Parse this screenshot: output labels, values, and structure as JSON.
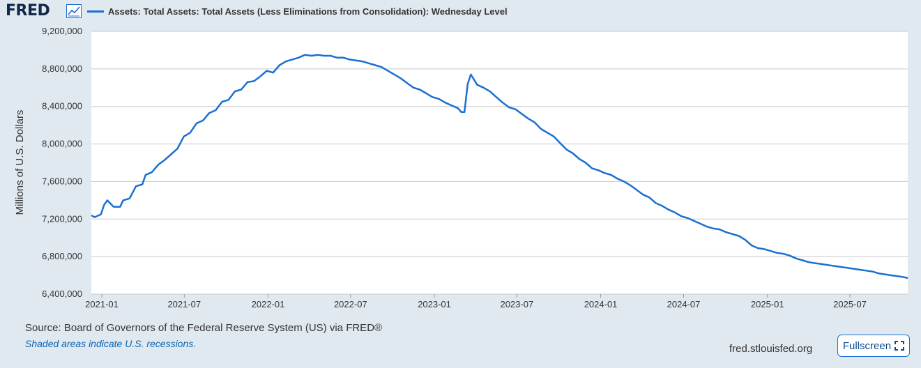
{
  "header": {
    "logo": "FRED",
    "legend_label": "Assets: Total Assets: Total Assets (Less Eliminations from Consolidation): Wednesday Level"
  },
  "footer": {
    "source": "Source: Board of Governors of the Federal Reserve System (US) via FRED®",
    "note": "Shaded areas indicate U.S. recessions.",
    "site": "fred.stlouisfed.org",
    "fullscreen_label": "Fullscreen"
  },
  "colors": {
    "series": "#1a6fd1",
    "plot_bg": "#ffffff",
    "page_bg": "#e1e9f0",
    "grid": "#c8c8c8"
  },
  "chart_data": {
    "type": "line",
    "ylabel": "Millions of U.S. Dollars",
    "ylim": [
      6400000,
      9200000
    ],
    "xlim": [
      "2020-12-09",
      "2025-11-05"
    ],
    "grid": true,
    "yticks": [
      {
        "value": 9200000,
        "label": "9,200,000"
      },
      {
        "value": 8800000,
        "label": "8,800,000"
      },
      {
        "value": 8400000,
        "label": "8,400,000"
      },
      {
        "value": 8000000,
        "label": "8,000,000"
      },
      {
        "value": 7600000,
        "label": "7,600,000"
      },
      {
        "value": 7200000,
        "label": "7,200,000"
      },
      {
        "value": 6800000,
        "label": "6,800,000"
      },
      {
        "value": 6400000,
        "label": "6,400,000"
      }
    ],
    "xticks": [
      {
        "date": "2021-01-01",
        "label": "2021-01"
      },
      {
        "date": "2021-07-01",
        "label": "2021-07"
      },
      {
        "date": "2022-01-01",
        "label": "2022-01"
      },
      {
        "date": "2022-07-01",
        "label": "2022-07"
      },
      {
        "date": "2023-01-01",
        "label": "2023-01"
      },
      {
        "date": "2023-07-01",
        "label": "2023-07"
      },
      {
        "date": "2024-01-01",
        "label": "2024-01"
      },
      {
        "date": "2024-07-01",
        "label": "2024-07"
      },
      {
        "date": "2025-01-01",
        "label": "2025-01"
      },
      {
        "date": "2025-07-01",
        "label": "2025-07"
      }
    ],
    "series": [
      {
        "name": "Assets: Total Assets: Total Assets (Less Eliminations from Consolidation): Wednesday Level",
        "x": [
          "2020-12-09",
          "2020-12-16",
          "2020-12-30",
          "2021-01-06",
          "2021-01-13",
          "2021-01-27",
          "2021-02-10",
          "2021-02-17",
          "2021-03-03",
          "2021-03-17",
          "2021-03-31",
          "2021-04-07",
          "2021-04-21",
          "2021-05-05",
          "2021-05-19",
          "2021-06-02",
          "2021-06-16",
          "2021-06-30",
          "2021-07-14",
          "2021-07-28",
          "2021-08-11",
          "2021-08-25",
          "2021-09-08",
          "2021-09-22",
          "2021-10-06",
          "2021-10-20",
          "2021-11-03",
          "2021-11-17",
          "2021-12-01",
          "2021-12-15",
          "2021-12-29",
          "2022-01-12",
          "2022-01-26",
          "2022-02-09",
          "2022-02-23",
          "2022-03-09",
          "2022-03-23",
          "2022-04-06",
          "2022-04-20",
          "2022-05-04",
          "2022-05-18",
          "2022-06-01",
          "2022-06-15",
          "2022-06-29",
          "2022-07-13",
          "2022-07-27",
          "2022-08-10",
          "2022-08-24",
          "2022-09-07",
          "2022-09-21",
          "2022-10-05",
          "2022-10-19",
          "2022-11-02",
          "2022-11-16",
          "2022-11-30",
          "2022-12-14",
          "2022-12-28",
          "2023-01-11",
          "2023-01-25",
          "2023-02-08",
          "2023-02-22",
          "2023-03-01",
          "2023-03-08",
          "2023-03-15",
          "2023-03-22",
          "2023-04-05",
          "2023-04-19",
          "2023-05-03",
          "2023-05-17",
          "2023-05-31",
          "2023-06-14",
          "2023-06-28",
          "2023-07-12",
          "2023-07-26",
          "2023-08-09",
          "2023-08-23",
          "2023-09-06",
          "2023-09-20",
          "2023-10-04",
          "2023-10-18",
          "2023-11-01",
          "2023-11-15",
          "2023-11-29",
          "2023-12-13",
          "2023-12-27",
          "2024-01-10",
          "2024-01-24",
          "2024-02-07",
          "2024-02-21",
          "2024-03-06",
          "2024-03-20",
          "2024-04-03",
          "2024-04-17",
          "2024-05-01",
          "2024-05-15",
          "2024-05-29",
          "2024-06-12",
          "2024-06-26",
          "2024-07-10",
          "2024-07-24",
          "2024-08-07",
          "2024-08-21",
          "2024-09-04",
          "2024-09-18",
          "2024-10-02",
          "2024-10-16",
          "2024-10-30",
          "2024-11-13",
          "2024-11-27",
          "2024-12-11",
          "2024-12-25",
          "2025-01-08",
          "2025-01-22",
          "2025-02-05",
          "2025-02-19",
          "2025-03-05",
          "2025-03-19",
          "2025-04-02",
          "2025-04-16",
          "2025-04-30",
          "2025-05-14",
          "2025-05-28",
          "2025-06-11",
          "2025-06-25",
          "2025-07-09",
          "2025-07-23",
          "2025-08-06",
          "2025-08-20",
          "2025-09-03",
          "2025-09-17",
          "2025-10-01",
          "2025-10-15",
          "2025-10-29",
          "2025-11-05"
        ],
        "values": [
          7240000,
          7220000,
          7250000,
          7350000,
          7400000,
          7330000,
          7330000,
          7400000,
          7420000,
          7550000,
          7570000,
          7670000,
          7700000,
          7780000,
          7830000,
          7890000,
          7950000,
          8080000,
          8120000,
          8220000,
          8250000,
          8330000,
          8360000,
          8450000,
          8470000,
          8560000,
          8580000,
          8660000,
          8670000,
          8720000,
          8780000,
          8760000,
          8840000,
          8880000,
          8900000,
          8920000,
          8950000,
          8940000,
          8950000,
          8940000,
          8940000,
          8920000,
          8920000,
          8900000,
          8890000,
          8880000,
          8860000,
          8840000,
          8820000,
          8780000,
          8740000,
          8700000,
          8650000,
          8600000,
          8580000,
          8540000,
          8500000,
          8480000,
          8440000,
          8410000,
          8380000,
          8340000,
          8340000,
          8640000,
          8740000,
          8630000,
          8600000,
          8560000,
          8500000,
          8440000,
          8390000,
          8370000,
          8320000,
          8270000,
          8230000,
          8160000,
          8120000,
          8080000,
          8010000,
          7940000,
          7900000,
          7840000,
          7800000,
          7740000,
          7720000,
          7690000,
          7670000,
          7630000,
          7600000,
          7560000,
          7510000,
          7460000,
          7430000,
          7370000,
          7340000,
          7300000,
          7270000,
          7230000,
          7210000,
          7180000,
          7150000,
          7120000,
          7100000,
          7090000,
          7060000,
          7040000,
          7020000,
          6980000,
          6920000,
          6890000,
          6880000,
          6860000,
          6840000,
          6830000,
          6810000,
          6780000,
          6760000,
          6740000,
          6730000,
          6720000,
          6710000,
          6700000,
          6690000,
          6680000,
          6670000,
          6660000,
          6650000,
          6640000,
          6620000,
          6610000,
          6600000,
          6590000,
          6580000,
          6570000
        ]
      }
    ]
  }
}
